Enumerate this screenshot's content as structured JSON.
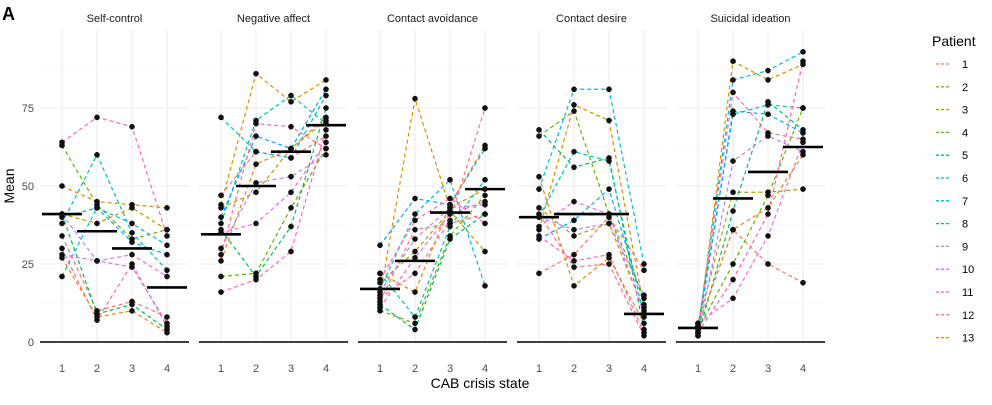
{
  "chart_data": {
    "type": "line",
    "tag": "A",
    "xlabel": "CAB crisis state",
    "ylabel": "Mean",
    "ylim": [
      0,
      100
    ],
    "y_ticks": [
      0,
      25,
      50,
      75
    ],
    "x": [
      1,
      2,
      3,
      4
    ],
    "grid": true,
    "legend_title": "Patient",
    "legend_position": "right",
    "colors": [
      "#F8766D",
      "#DB8E00",
      "#AEA200",
      "#64B200",
      "#00BD5C",
      "#00C1A7",
      "#00BADE",
      "#00A6FF",
      "#B385FF",
      "#EF67EB",
      "#FF63B6",
      "#FF6C91",
      "#E7861B"
    ],
    "series_names": [
      "1",
      "2",
      "3",
      "4",
      "5",
      "6",
      "7",
      "8",
      "9",
      "10",
      "11",
      "12",
      "13"
    ],
    "panels": [
      {
        "title": "Self-control",
        "means": [
          41,
          35.5,
          30,
          17.5
        ],
        "series": [
          [
            34,
            10,
            13,
            8
          ],
          [
            50,
            45,
            44,
            43
          ],
          [
            41,
            38,
            43,
            36
          ],
          [
            63,
            44,
            33,
            36
          ],
          [
            41,
            9,
            12,
            4
          ],
          [
            38,
            60,
            35,
            23
          ],
          [
            21,
            43,
            38,
            31
          ],
          [
            40,
            43,
            32,
            28
          ],
          [
            41,
            26,
            24,
            6
          ],
          [
            28,
            26,
            28,
            21
          ],
          [
            64,
            72,
            69,
            34
          ],
          [
            30,
            7,
            25,
            5
          ],
          [
            27,
            8,
            10,
            3
          ]
        ]
      },
      {
        "title": "Negative affect",
        "means": [
          34.5,
          50,
          61,
          69.5
        ],
        "series": [
          [
            47,
            61,
            59,
            66
          ],
          [
            44,
            86,
            77,
            84
          ],
          [
            43,
            48,
            62,
            72
          ],
          [
            21,
            22,
            43,
            62
          ],
          [
            36,
            21,
            37,
            75
          ],
          [
            38,
            71,
            79,
            70
          ],
          [
            72,
            61,
            59,
            79
          ],
          [
            40,
            66,
            62,
            81
          ],
          [
            30,
            51,
            53,
            60
          ],
          [
            35,
            38,
            48,
            64
          ],
          [
            16,
            20,
            29,
            68
          ],
          [
            28,
            70,
            69,
            62
          ],
          [
            26,
            57,
            62,
            71
          ]
        ]
      },
      {
        "title": "Contact avoidance",
        "means": [
          17,
          26,
          41.5,
          49
        ],
        "series": [
          [
            13,
            36,
            38,
            41
          ],
          [
            15,
            78,
            43,
            49
          ],
          [
            19,
            29,
            42,
            29
          ],
          [
            10,
            6,
            34,
            47
          ],
          [
            12,
            4,
            33,
            41
          ],
          [
            22,
            8,
            37,
            52
          ],
          [
            17,
            41,
            52,
            18
          ],
          [
            31,
            46,
            44,
            62
          ],
          [
            16,
            33,
            43,
            44
          ],
          [
            11,
            27,
            41,
            45
          ],
          [
            20,
            39,
            46,
            38
          ],
          [
            14,
            22,
            39,
            75
          ],
          [
            22,
            16,
            44,
            63
          ]
        ]
      },
      {
        "title": "Contact desire",
        "means": [
          40,
          41,
          41,
          9
        ],
        "series": [
          [
            22,
            28,
            40,
            23
          ],
          [
            36,
            76,
            71,
            11
          ],
          [
            43,
            34,
            38,
            10
          ],
          [
            66,
            74,
            41,
            14
          ],
          [
            68,
            56,
            59,
            4
          ],
          [
            40,
            61,
            58,
            8
          ],
          [
            49,
            81,
            81,
            25
          ],
          [
            33,
            39,
            49,
            12
          ],
          [
            40,
            36,
            38,
            15
          ],
          [
            37,
            45,
            41,
            9
          ],
          [
            34,
            26,
            28,
            3
          ],
          [
            41,
            24,
            25,
            2
          ],
          [
            53,
            18,
            27,
            6
          ]
        ]
      },
      {
        "title": "Suicidal ideation",
        "means": [
          4.5,
          46,
          54.5,
          62.5
        ],
        "series": [
          [
            5,
            36,
            25,
            19
          ],
          [
            3,
            90,
            84,
            89
          ],
          [
            6,
            48,
            48,
            49
          ],
          [
            4,
            25,
            47,
            75
          ],
          [
            2,
            42,
            77,
            68
          ],
          [
            5,
            73,
            76,
            75
          ],
          [
            4,
            84,
            87,
            93
          ],
          [
            3,
            74,
            73,
            67
          ],
          [
            2,
            58,
            66,
            61
          ],
          [
            6,
            14,
            34,
            64
          ],
          [
            3,
            20,
            41,
            90
          ],
          [
            4,
            80,
            67,
            65
          ],
          [
            5,
            36,
            43,
            60
          ]
        ]
      }
    ]
  }
}
